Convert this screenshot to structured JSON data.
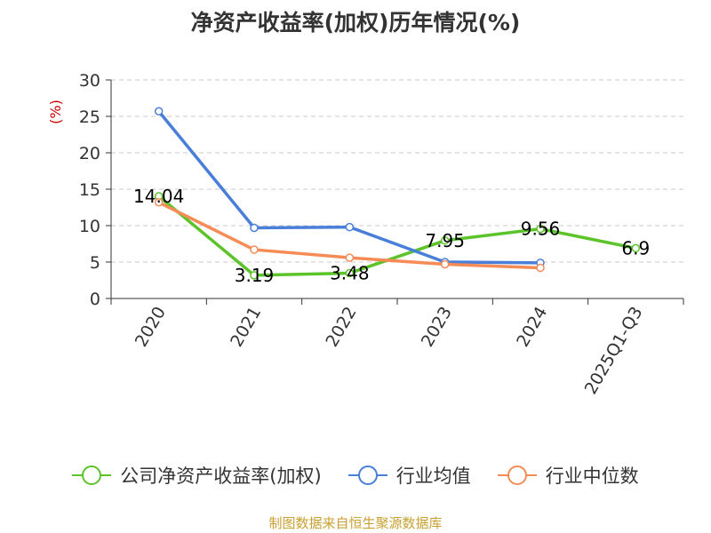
{
  "chart_data": {
    "type": "line",
    "title": "净资产收益率(加权)历年情况(%)",
    "ylabel": "(%)",
    "xlabel": "",
    "categories": [
      "2020",
      "2021",
      "2022",
      "2023",
      "2024",
      "2025Q1-Q3"
    ],
    "ylim": [
      0,
      30
    ],
    "yticks": [
      0,
      5,
      10,
      15,
      20,
      25,
      30
    ],
    "grid": "horizontal dashed",
    "legend_position": "bottom",
    "series": [
      {
        "name": "公司净资产收益率(加权)",
        "color": "#5cc42a",
        "values": [
          14.04,
          3.19,
          3.48,
          7.95,
          9.56,
          6.9
        ],
        "labels": [
          "14.04",
          "3.19",
          "3.48",
          "7.95",
          "9.56",
          "6.9"
        ]
      },
      {
        "name": "行业均值",
        "color": "#4a7fd9",
        "values": [
          25.7,
          9.7,
          9.8,
          5.0,
          4.9,
          null
        ]
      },
      {
        "name": "行业中位数",
        "color": "#f68b56",
        "values": [
          13.2,
          6.7,
          5.6,
          4.7,
          4.2,
          null
        ]
      }
    ]
  },
  "source": "制图数据来自恒生聚源数据库"
}
